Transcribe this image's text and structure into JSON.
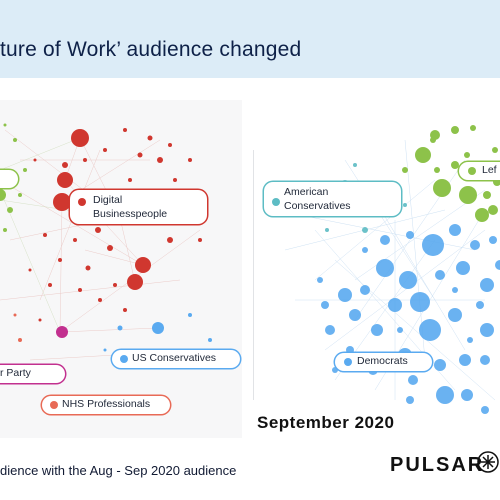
{
  "title": "ture of Work’ audience changed",
  "left_panel": {
    "labels": {
      "digital": "Digital\nBusinesspeople",
      "us_conservatives": "US Conservatives",
      "party": "r Party",
      "nhs": "NHS Professionals"
    }
  },
  "right_panel": {
    "caption": "September 2020",
    "labels": {
      "american": "American\nConservatives",
      "left": "Lef",
      "democrats": "Democrats"
    }
  },
  "footer": {
    "text": "dience with the Aug - Sep 2020 audience",
    "brand": "PULSAR"
  },
  "colors": {
    "title_bar": "#dcecf7",
    "red": "#d0372f",
    "green": "#8dc24a",
    "blue": "#5aaaf0",
    "teal": "#5dbcc4",
    "magenta": "#c2308f",
    "salmon": "#e86a56",
    "brand": "#111111"
  }
}
